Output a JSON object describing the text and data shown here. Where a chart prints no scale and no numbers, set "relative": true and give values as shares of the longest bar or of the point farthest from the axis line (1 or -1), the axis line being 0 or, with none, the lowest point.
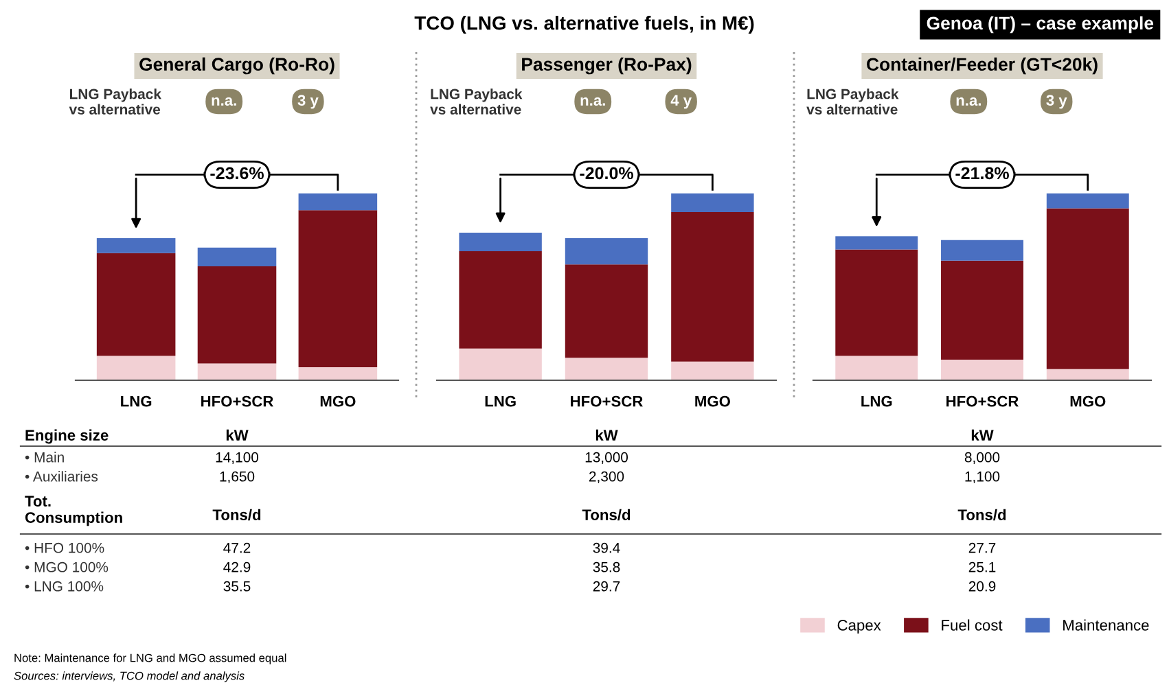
{
  "chart_data": [
    {
      "type": "other",
      "title": "TCO (LNG vs. alternative fuels, in M€)",
      "subtitle": "Genoa (IT) – case example",
      "annotations": [
        "Engine size",
        "• Main",
        "• Auxiliaries",
        "Tot.\nConsumption",
        "• HFO 100%",
        "• MGO 100%",
        "• LNG 100%",
        "Note: Maintenance for LNG and MGO assumed equal",
        "Sources: interviews, TCO model and analysis"
      ]
    },
    {
      "type": "bar",
      "title": "General Cargo (Ro-Ro)",
      "stacked": true,
      "relative": true,
      "categories": [
        "LNG",
        "HFO+SCR",
        "MGO"
      ],
      "series": [
        {
          "color": "#f2d0d4",
          "values": [
            0.13,
            0.09,
            0.07
          ]
        },
        {
          "color": "#7b1019",
          "values": [
            0.55,
            0.52,
            0.84
          ]
        },
        {
          "color": "#4a6fc1",
          "values": [
            0.08,
            0.1,
            0.09
          ]
        }
      ],
      "annotations": [
        "LNG Payback\nvs alternative",
        "n.a.",
        "3 y",
        "-23.6%",
        "kW",
        "14,100",
        "1,650",
        "Tons/d",
        "47.2",
        "42.9",
        "35.5"
      ]
    },
    {
      "type": "bar",
      "title": "Passenger (Ro-Pax)",
      "stacked": true,
      "relative": true,
      "categories": [
        "LNG",
        "HFO+SCR",
        "MGO"
      ],
      "series": [
        {
          "color": "#f2d0d4",
          "values": [
            0.17,
            0.12,
            0.1
          ]
        },
        {
          "color": "#7b1019",
          "values": [
            0.52,
            0.5,
            0.8
          ]
        },
        {
          "color": "#4a6fc1",
          "values": [
            0.1,
            0.14,
            0.1
          ]
        }
      ],
      "annotations": [
        "LNG Payback\nvs alternative",
        "n.a.",
        "4 y",
        "-20.0%",
        "kW",
        "13,000",
        "2,300",
        "Tons/d",
        "39.4",
        "35.8",
        "29.7"
      ]
    },
    {
      "type": "bar",
      "title": "Container/Feeder (GT<20k)",
      "stacked": true,
      "relative": true,
      "categories": [
        "LNG",
        "HFO+SCR",
        "MGO"
      ],
      "legend": "bottom right",
      "series": [
        {
          "name": "Capex",
          "color": "#f2d0d4",
          "values": [
            0.13,
            0.11,
            0.06
          ]
        },
        {
          "name": "Fuel cost",
          "color": "#7b1019",
          "values": [
            0.57,
            0.53,
            0.86
          ]
        },
        {
          "name": "Maintenance",
          "color": "#4a6fc1",
          "values": [
            0.07,
            0.11,
            0.08
          ]
        }
      ],
      "annotations": [
        "LNG Payback\nvs alternative",
        "n.a.",
        "3 y",
        "-21.8%",
        "kW",
        "8,000",
        "1,100",
        "Tons/d",
        "27.7",
        "25.1",
        "20.9"
      ]
    }
  ]
}
